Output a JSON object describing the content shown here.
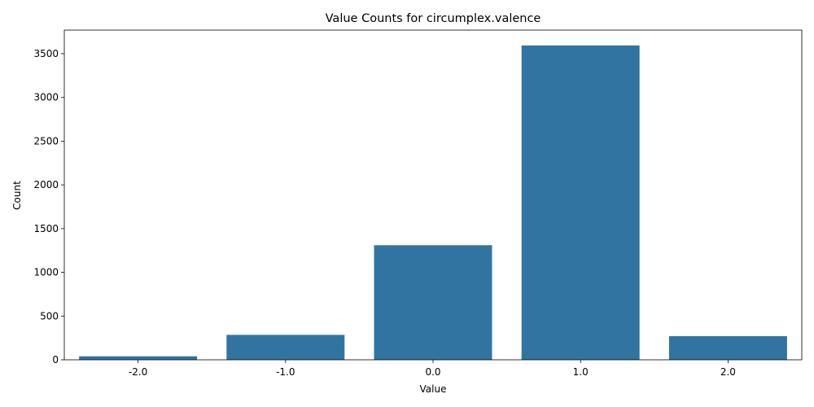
{
  "chart_data": {
    "type": "bar",
    "title": "Value Counts for circumplex.valence",
    "xlabel": "Value",
    "ylabel": "Count",
    "categories": [
      "-2.0",
      "-1.0",
      "0.0",
      "1.0",
      "2.0"
    ],
    "values": [
      40,
      285,
      1310,
      3595,
      270
    ],
    "ylim": [
      0,
      3770
    ],
    "yticks": [
      0,
      500,
      1000,
      1500,
      2000,
      2500,
      3000,
      3500
    ],
    "grid": false,
    "bar_color": "#3274a1"
  }
}
